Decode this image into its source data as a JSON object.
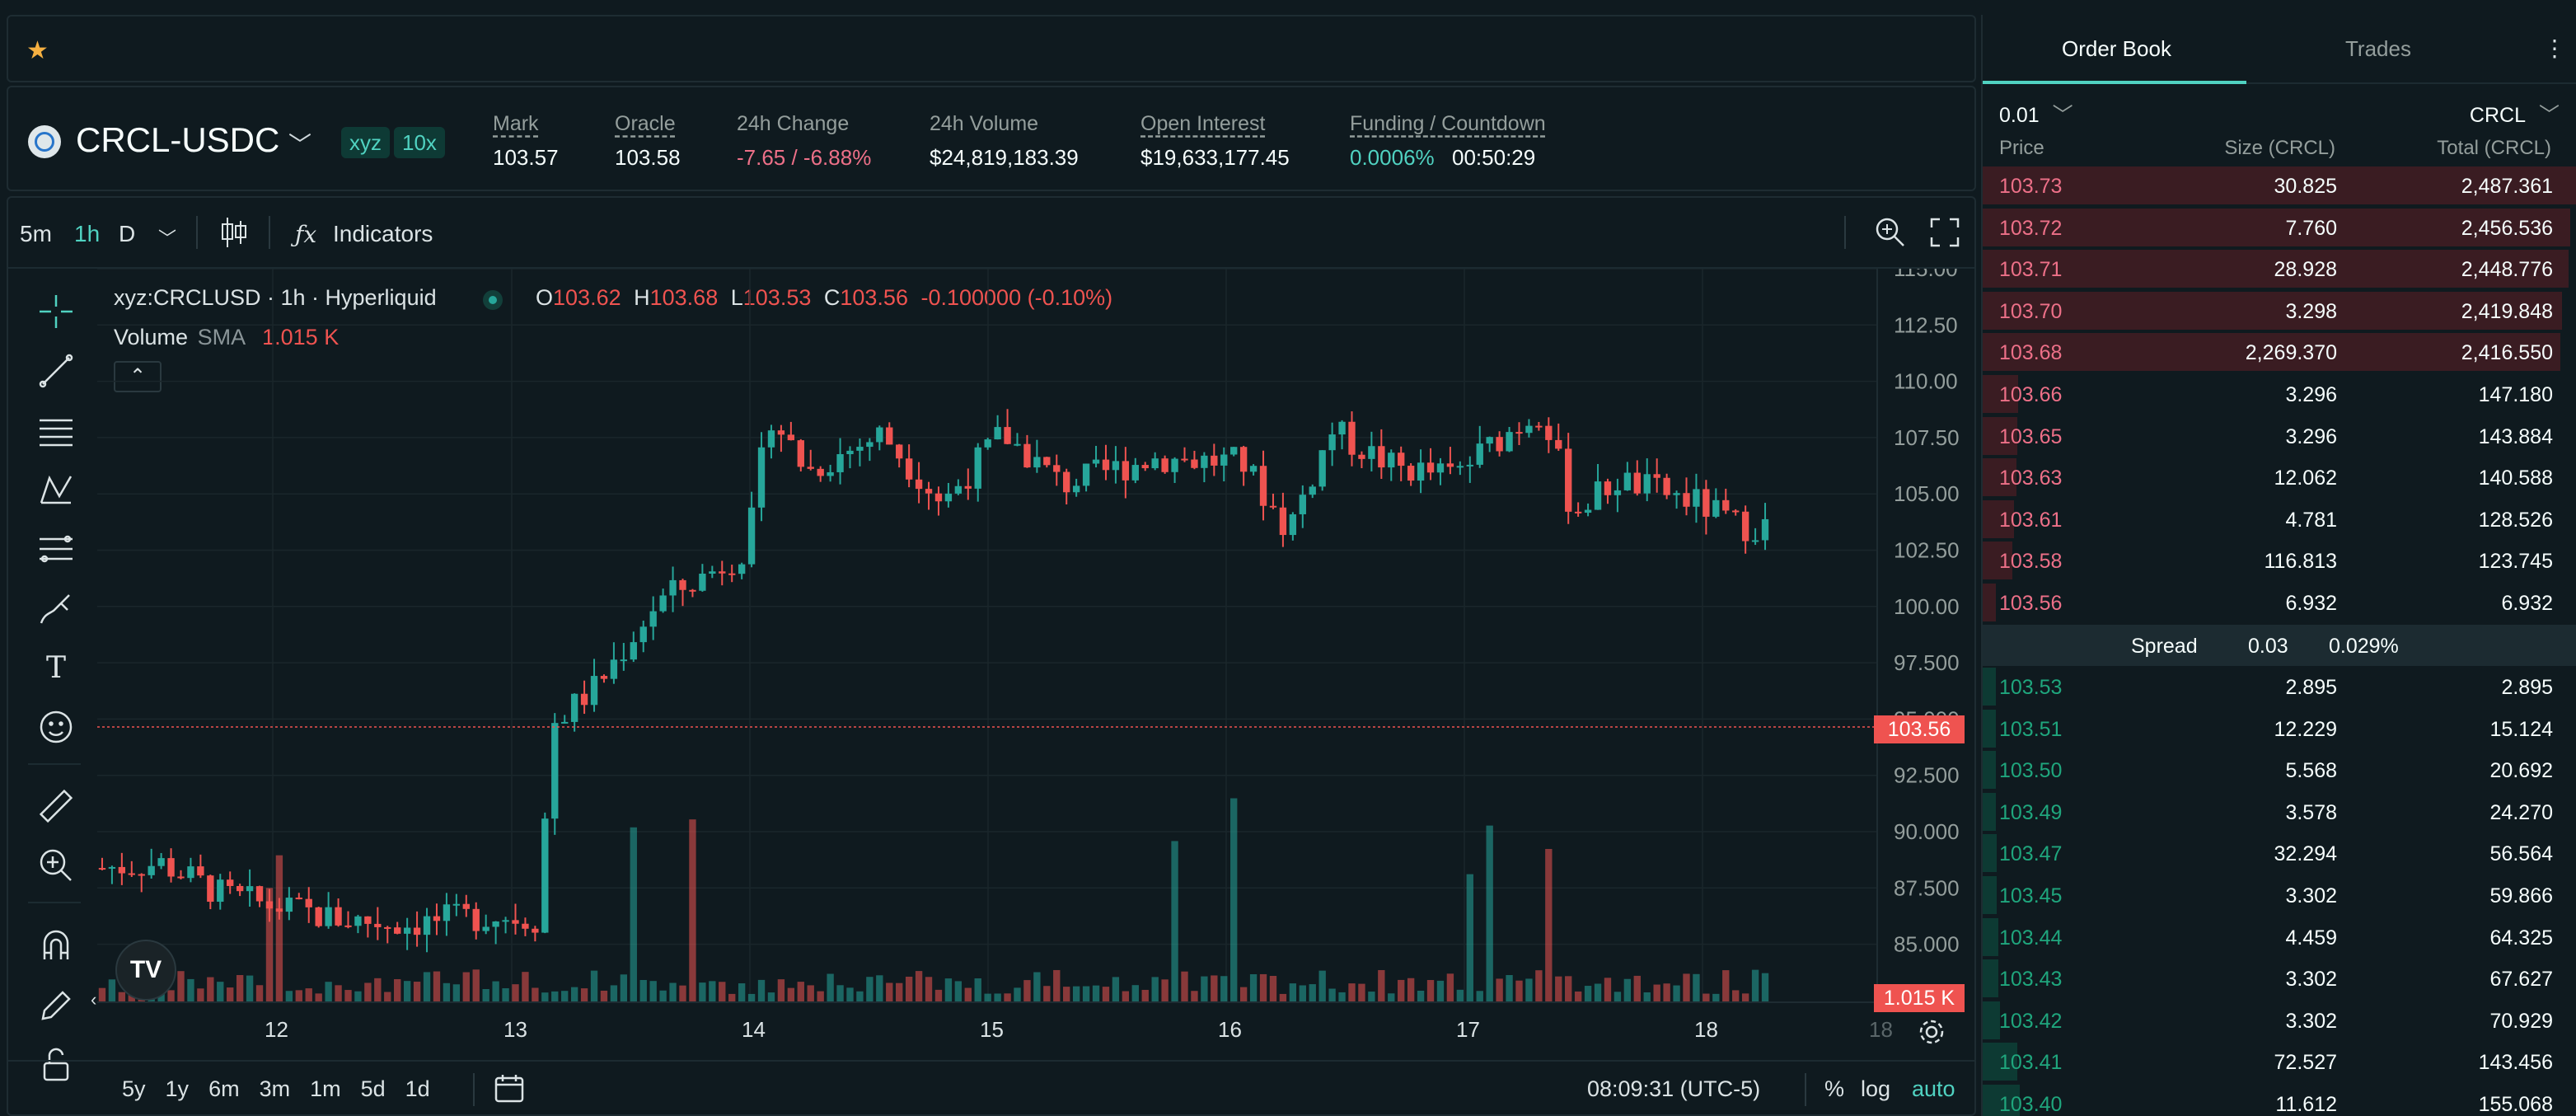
{
  "header": {
    "symbol": "CRCL-USDC",
    "badges": [
      "xyz",
      "10x"
    ],
    "stats": [
      {
        "label": "Mark",
        "value": "103.57"
      },
      {
        "label": "Oracle",
        "value": "103.58"
      },
      {
        "label": "24h Change",
        "value": "-7.65 / -6.88%"
      },
      {
        "label": "24h Volume",
        "value": "$24,819,183.39"
      },
      {
        "label": "Open Interest",
        "value": "$19,633,177.45"
      },
      {
        "label": "Funding / Countdown",
        "value": "0.0006%",
        "value2": "00:50:29"
      }
    ]
  },
  "chart_toolbar": {
    "intervals": [
      "5m",
      "1h",
      "D"
    ],
    "active_interval": "1h",
    "indicators_label": "Indicators"
  },
  "legend": {
    "title": "xyz:CRCLUSD · 1h · Hyperliquid",
    "o_label": "O",
    "o": "103.62",
    "h_label": "H",
    "h": "103.68",
    "l_label": "L",
    "l": "103.53",
    "c_label": "C",
    "c": "103.56",
    "change": "-0.100000 (-0.10%)",
    "volume_label": "Volume",
    "sma_label": "SMA",
    "volume_value": "1.015 K"
  },
  "price_axis": [
    "115.00",
    "112.50",
    "110.00",
    "107.50",
    "105.00",
    "102.50",
    "100.00",
    "97.500",
    "95.000",
    "92.500",
    "90.000",
    "87.500",
    "85.000"
  ],
  "current_price_tag": "103.56",
  "volume_tag": "1.015 K",
  "time_axis": [
    "12",
    "13",
    "14",
    "15",
    "16",
    "17",
    "18",
    "18"
  ],
  "bottom_bar": {
    "ranges": [
      "5y",
      "1y",
      "6m",
      "3m",
      "1m",
      "5d",
      "1d"
    ],
    "time": "08:09:31 (UTC-5)",
    "pct": "%",
    "log": "log",
    "auto": "auto"
  },
  "order_book": {
    "tabs": [
      "Order Book",
      "Trades"
    ],
    "tick": "0.01",
    "unit": "CRCL",
    "columns": [
      "Price",
      "Size (CRCL)",
      "Total (CRCL)"
    ],
    "asks": [
      {
        "price": "103.73",
        "size": "30.825",
        "total": "2,487.361",
        "depth": 1.0
      },
      {
        "price": "103.72",
        "size": "7.760",
        "total": "2,456.536",
        "depth": 0.988
      },
      {
        "price": "103.71",
        "size": "28.928",
        "total": "2,448.776",
        "depth": 0.985
      },
      {
        "price": "103.70",
        "size": "3.298",
        "total": "2,419.848",
        "depth": 0.973
      },
      {
        "price": "103.68",
        "size": "2,269.370",
        "total": "2,416.550",
        "depth": 0.971
      },
      {
        "price": "103.66",
        "size": "3.296",
        "total": "147.180",
        "depth": 0.059
      },
      {
        "price": "103.65",
        "size": "3.296",
        "total": "143.884",
        "depth": 0.058
      },
      {
        "price": "103.63",
        "size": "12.062",
        "total": "140.588",
        "depth": 0.057
      },
      {
        "price": "103.61",
        "size": "4.781",
        "total": "128.526",
        "depth": 0.052
      },
      {
        "price": "103.58",
        "size": "116.813",
        "total": "123.745",
        "depth": 0.05
      },
      {
        "price": "103.56",
        "size": "6.932",
        "total": "6.932",
        "depth": 0.003
      }
    ],
    "spread_label": "Spread",
    "spread_value": "0.03",
    "spread_pct": "0.029%",
    "bids": [
      {
        "price": "103.53",
        "size": "2.895",
        "total": "2.895",
        "depth": 0.001
      },
      {
        "price": "103.51",
        "size": "12.229",
        "total": "15.124",
        "depth": 0.006
      },
      {
        "price": "103.50",
        "size": "5.568",
        "total": "20.692",
        "depth": 0.008
      },
      {
        "price": "103.49",
        "size": "3.578",
        "total": "24.270",
        "depth": 0.01
      },
      {
        "price": "103.47",
        "size": "32.294",
        "total": "56.564",
        "depth": 0.023
      },
      {
        "price": "103.45",
        "size": "3.302",
        "total": "59.866",
        "depth": 0.024
      },
      {
        "price": "103.44",
        "size": "4.459",
        "total": "64.325",
        "depth": 0.026
      },
      {
        "price": "103.43",
        "size": "3.302",
        "total": "67.627",
        "depth": 0.027
      },
      {
        "price": "103.42",
        "size": "3.302",
        "total": "70.929",
        "depth": 0.029
      },
      {
        "price": "103.41",
        "size": "72.527",
        "total": "143.456",
        "depth": 0.058
      },
      {
        "price": "103.40",
        "size": "11.612",
        "total": "155.068",
        "depth": 0.062
      }
    ]
  },
  "colors": {
    "up": "#26a69a",
    "down": "#ef5350",
    "accent": "#50d2c1",
    "star": "#f5b041"
  }
}
